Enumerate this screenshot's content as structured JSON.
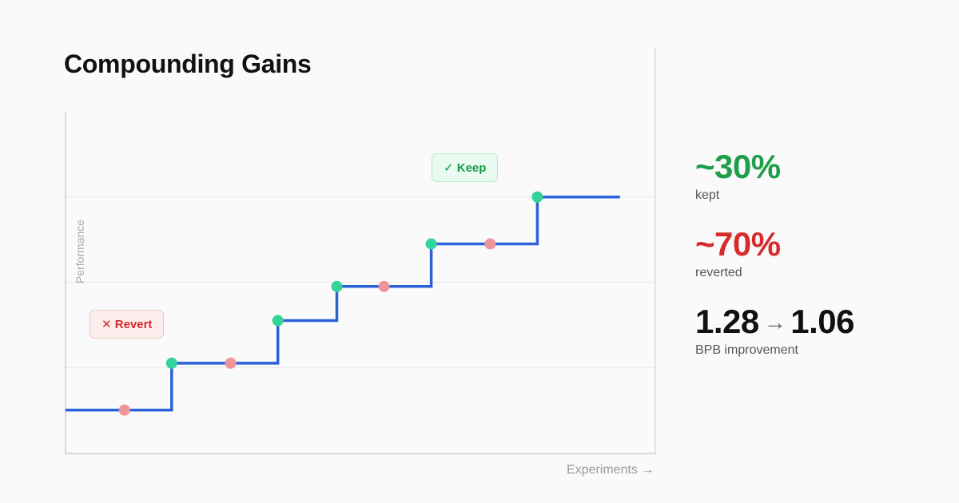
{
  "page": {
    "title": "Compounding Gains"
  },
  "chart_data": {
    "type": "line",
    "step": true,
    "title": "Compounding Gains",
    "xlabel": "Experiments →",
    "ylabel": "Performance",
    "xlim": [
      0,
      10
    ],
    "ylim": [
      0,
      4
    ],
    "grid": true,
    "step_line": {
      "x": [
        0,
        1.8,
        1.8,
        3.6,
        3.6,
        4.6,
        4.6,
        6.2,
        6.2,
        8.0,
        8.0,
        9.4
      ],
      "y": [
        0.5,
        0.5,
        1.05,
        1.05,
        1.55,
        1.55,
        1.95,
        1.95,
        2.45,
        2.45,
        3.0,
        3.0
      ]
    },
    "series": [
      {
        "name": "Keep",
        "color": "#34d399",
        "points": [
          [
            1.8,
            1.05
          ],
          [
            3.6,
            1.55
          ],
          [
            4.6,
            1.95
          ],
          [
            6.2,
            2.45
          ],
          [
            8.0,
            3.0
          ]
        ]
      },
      {
        "name": "Revert",
        "color": "#f0939b",
        "points": [
          [
            1.0,
            0.5
          ],
          [
            2.8,
            1.05
          ],
          [
            5.4,
            1.95
          ],
          [
            7.2,
            2.45
          ]
        ]
      }
    ],
    "gridlines_y": [
      1.0,
      2.0,
      3.0
    ],
    "line_color": "#2b62d9"
  },
  "badges": {
    "keep": "✓ Keep",
    "revert": "✕ Revert"
  },
  "stats": {
    "kept": {
      "value": "~30%",
      "label": "kept"
    },
    "reverted": {
      "value": "~70%",
      "label": "reverted"
    },
    "bpb": {
      "from": "1.28",
      "arrow": "→",
      "to": "1.06",
      "label": "BPB improvement"
    }
  }
}
